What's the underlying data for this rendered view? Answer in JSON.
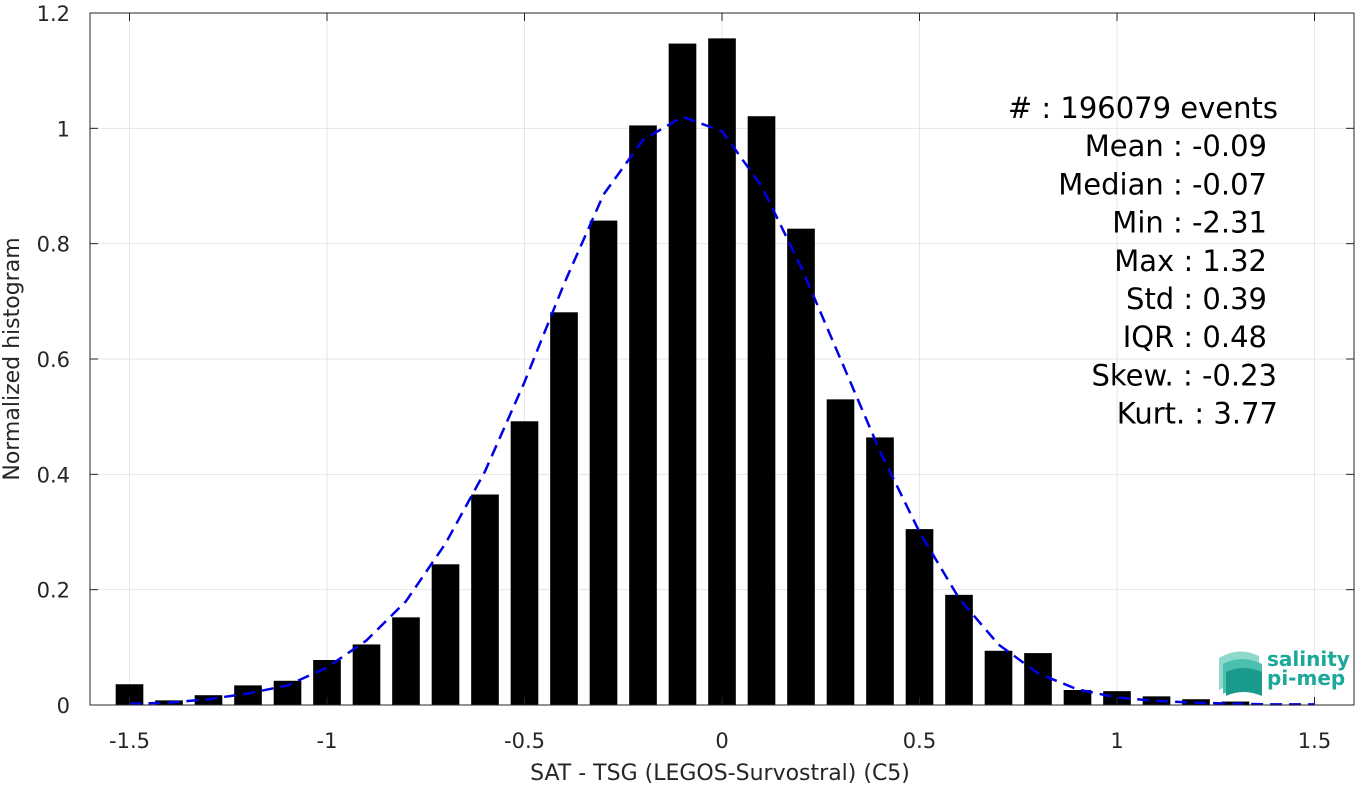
{
  "chart_data": {
    "type": "bar",
    "xlabel": "SAT - TSG (LEGOS-Survostral) (C5)",
    "ylabel": "Normalized histogram",
    "xlim": [
      -1.6,
      1.6
    ],
    "ylim": [
      0,
      1.2
    ],
    "grid": true,
    "x_ticks": [
      "-1.5",
      "-1",
      "-0.5",
      "0",
      "0.5",
      "1",
      "1.5"
    ],
    "y_ticks": [
      "0",
      "0.2",
      "0.4",
      "0.6",
      "0.8",
      "1",
      "1.2"
    ],
    "bar_width": 0.07,
    "bars": {
      "x": [
        -1.5,
        -1.4,
        -1.3,
        -1.2,
        -1.1,
        -1.0,
        -0.9,
        -0.8,
        -0.7,
        -0.6,
        -0.5,
        -0.4,
        -0.3,
        -0.2,
        -0.1,
        0.0,
        0.1,
        0.2,
        0.3,
        0.4,
        0.5,
        0.6,
        0.7,
        0.8,
        0.9,
        1.0,
        1.1,
        1.2,
        1.3
      ],
      "values": [
        0.036,
        0.008,
        0.017,
        0.034,
        0.042,
        0.078,
        0.105,
        0.152,
        0.244,
        0.365,
        0.492,
        0.681,
        0.84,
        1.005,
        1.147,
        1.156,
        1.021,
        0.826,
        0.53,
        0.464,
        0.305,
        0.191,
        0.094,
        0.09,
        0.026,
        0.024,
        0.015,
        0.01,
        0.006
      ],
      "color": "#000000"
    },
    "fit_curve": {
      "style": "dashed",
      "color": "#0000e6",
      "x": [
        -1.5,
        -1.4,
        -1.3,
        -1.2,
        -1.1,
        -1.0,
        -0.9,
        -0.8,
        -0.7,
        -0.6,
        -0.5,
        -0.4,
        -0.3,
        -0.2,
        -0.1,
        0.0,
        0.1,
        0.2,
        0.3,
        0.4,
        0.5,
        0.6,
        0.7,
        0.8,
        0.9,
        1.0,
        1.1,
        1.2,
        1.3,
        1.4,
        1.5
      ],
      "values": [
        0.002,
        0.004,
        0.01,
        0.02,
        0.034,
        0.065,
        0.112,
        0.18,
        0.28,
        0.405,
        0.56,
        0.73,
        0.885,
        0.98,
        1.02,
        0.995,
        0.9,
        0.76,
        0.6,
        0.44,
        0.3,
        0.185,
        0.105,
        0.055,
        0.027,
        0.013,
        0.007,
        0.004,
        0.002,
        0.001,
        0.001
      ]
    },
    "stats_lines": [
      "#  : 196079 events",
      "Mean : -0.09",
      "Median : -0.07",
      "Min : -2.31",
      "Max : 1.32",
      "Std : 0.39",
      "IQR : 0.48",
      "Skew. : -0.23",
      "Kurt. : 3.77"
    ]
  },
  "logo": {
    "line1": "salinity",
    "line2": "pi-mep"
  }
}
